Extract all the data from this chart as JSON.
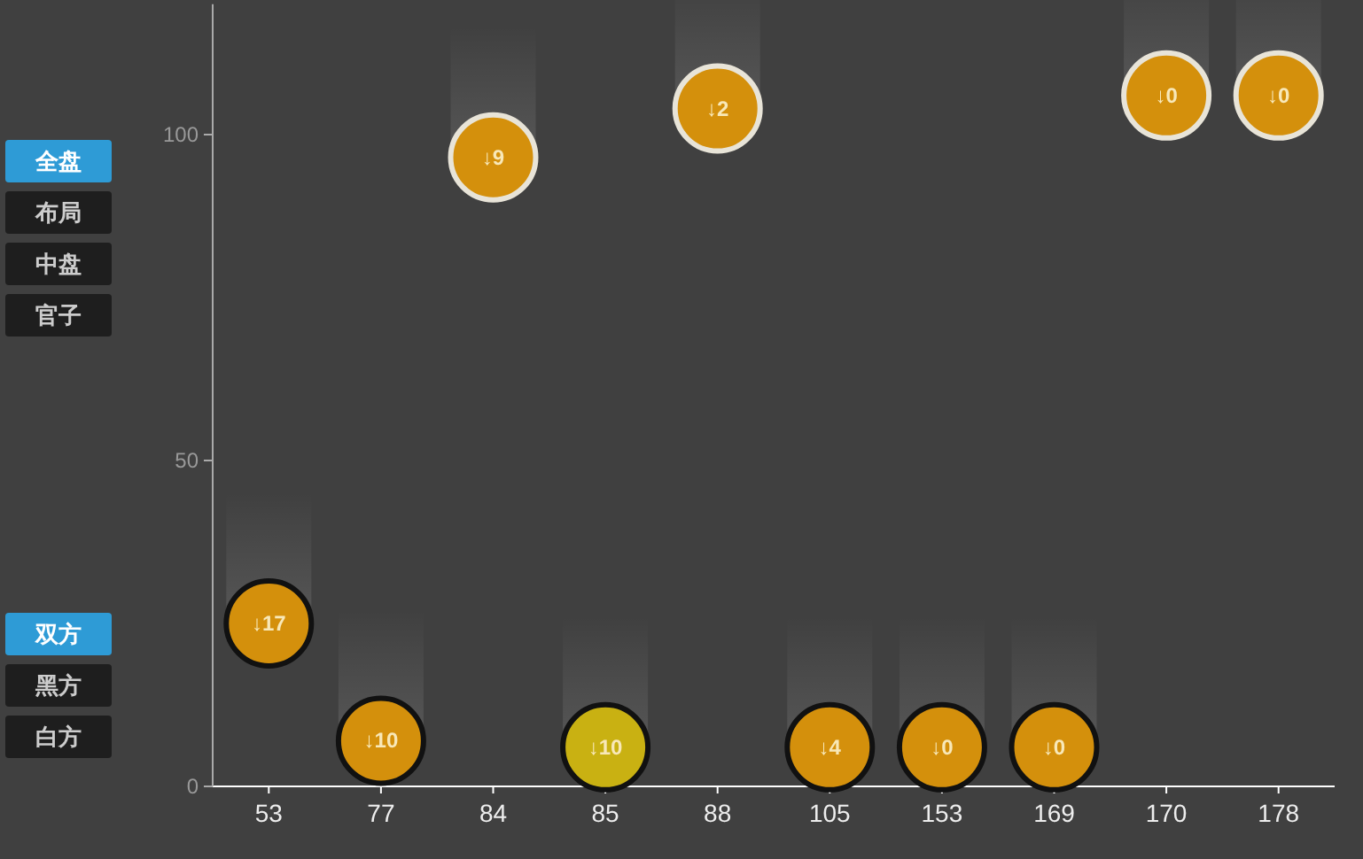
{
  "chart_data": [
    {
      "type": "scatter",
      "categories": [
        "53",
        "77",
        "84",
        "85",
        "88",
        "105",
        "153",
        "169",
        "170",
        "178"
      ],
      "series": [
        {
          "color": "#111111",
          "colors": [
            "#d4900c",
            "#d4900c",
            null,
            "#c9b112",
            null,
            "#d4900c",
            "#d4900c",
            "#d4900c",
            null,
            null
          ],
          "values": [
            25,
            7,
            null,
            6,
            null,
            6,
            6,
            6,
            null,
            null
          ]
        },
        {
          "color": "#e8e4d8",
          "colors": [
            null,
            null,
            "#d4900c",
            null,
            "#d4900c",
            null,
            null,
            null,
            "#d4900c",
            "#d4900c"
          ],
          "values": [
            null,
            null,
            96.5,
            null,
            104,
            null,
            null,
            null,
            106,
            106
          ]
        }
      ],
      "annotations": [
        {
          "text": "↓17",
          "x": "53",
          "y": 25
        },
        {
          "text": "↓10",
          "x": "77",
          "y": 7
        },
        {
          "text": "↓9",
          "x": "84",
          "y": 96.5
        },
        {
          "text": "↓10",
          "x": "85",
          "y": 6
        },
        {
          "text": "↓2",
          "x": "88",
          "y": 104
        },
        {
          "text": "↓4",
          "x": "105",
          "y": 6
        },
        {
          "text": "↓0",
          "x": "153",
          "y": 6
        },
        {
          "text": "↓0",
          "x": "169",
          "y": 6
        },
        {
          "text": "↓0",
          "x": "170",
          "y": 106
        },
        {
          "text": "↓0",
          "x": "178",
          "y": 106
        }
      ],
      "ylim": [
        0,
        120
      ],
      "yticks": [
        0,
        50,
        100
      ],
      "grid": false,
      "marker": "circle"
    },
    {
      "type": "other",
      "categories": [
        "全盘",
        "布局",
        "中盘",
        "官子"
      ],
      "colors": [
        "#2e9bd6",
        "#1e1e1e",
        "#1e1e1e",
        "#1e1e1e"
      ]
    },
    {
      "type": "other",
      "categories": [
        "双方",
        "黑方",
        "白方"
      ],
      "colors": [
        "#2e9bd6",
        "#1e1e1e",
        "#1e1e1e"
      ]
    }
  ]
}
